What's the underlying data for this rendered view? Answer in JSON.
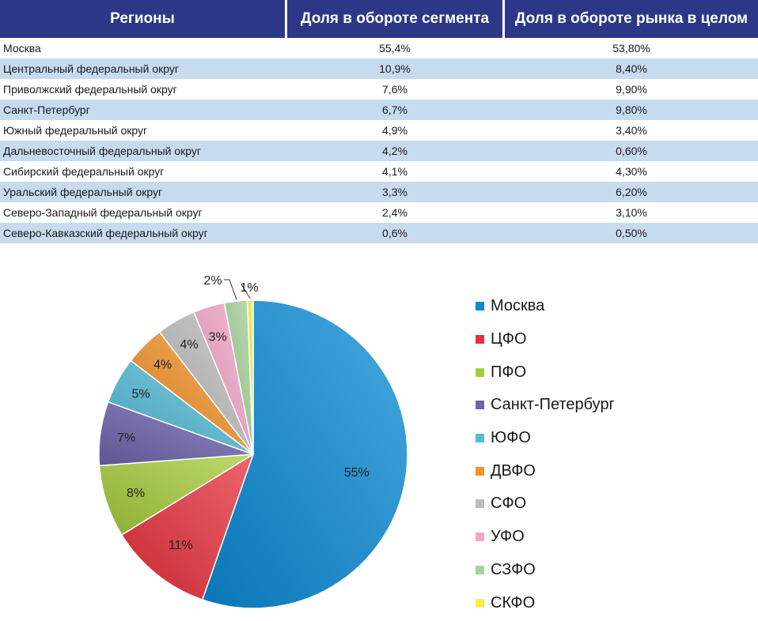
{
  "table": {
    "headers": [
      "Регионы",
      "Доля в обороте сегмента",
      "Доля в обороте рынка в целом"
    ],
    "rows": [
      [
        "Москва",
        "55,4%",
        "53,80%"
      ],
      [
        "Центральный федеральный округ",
        "10,9%",
        "8,40%"
      ],
      [
        "Приволжский федеральный округ",
        "7,6%",
        "9,90%"
      ],
      [
        "Санкт-Петербург",
        "6,7%",
        "9,80%"
      ],
      [
        "Южный федеральный округ",
        "4,9%",
        "3,40%"
      ],
      [
        "Дальневосточный федеральный округ",
        "4,2%",
        "0,60%"
      ],
      [
        "Сибирский федеральный округ",
        "4,1%",
        "4,30%"
      ],
      [
        "Уральский федеральный округ",
        "3,3%",
        "6,20%"
      ],
      [
        "Северо-Западный федеральный округ",
        "2,4%",
        "3,10%"
      ],
      [
        "Северо-Кавказский федеральный округ",
        "0,6%",
        "0,50%"
      ]
    ]
  },
  "chart_data": {
    "type": "pie",
    "title": "",
    "legend_position": "right",
    "slices": [
      {
        "name": "Москва",
        "value": 55.4,
        "label": "55%",
        "color": "#0a8bd6"
      },
      {
        "name": "ЦФО",
        "value": 10.9,
        "label": "11%",
        "color": "#e8303c"
      },
      {
        "name": "ПФО",
        "value": 7.6,
        "label": "8%",
        "color": "#a6cd3c"
      },
      {
        "name": "Санкт-Петербург",
        "value": 6.7,
        "label": "7%",
        "color": "#6e64ad"
      },
      {
        "name": "ЮФО",
        "value": 4.9,
        "label": "5%",
        "color": "#56bcd8"
      },
      {
        "name": "ДВФО",
        "value": 4.2,
        "label": "4%",
        "color": "#f59428"
      },
      {
        "name": "СФО",
        "value": 4.1,
        "label": "4%",
        "color": "#bdbdbd"
      },
      {
        "name": "УФО",
        "value": 3.3,
        "label": "3%",
        "color": "#f4a6c8"
      },
      {
        "name": "СЗФО",
        "value": 2.4,
        "label": "2%",
        "color": "#a6d29a"
      },
      {
        "name": "СКФО",
        "value": 0.6,
        "label": "1%",
        "color": "#f5ef4a"
      }
    ]
  }
}
